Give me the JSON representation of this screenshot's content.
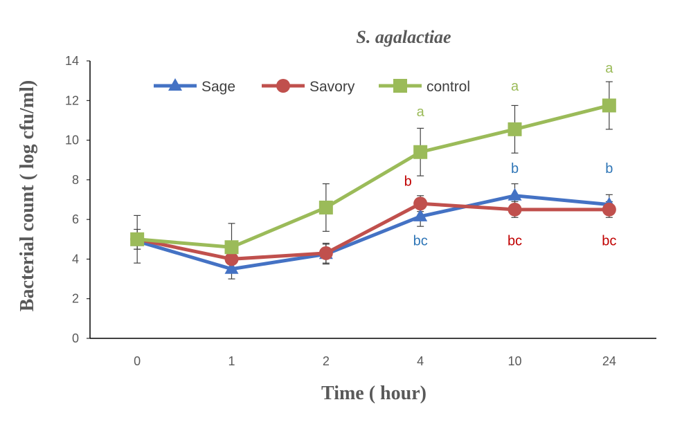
{
  "chart_data": {
    "type": "line",
    "title": "S. agalactiae",
    "xlabel": "Time ( hour)",
    "ylabel": "Bacterial count ( log cfu/ml)",
    "categories": [
      "0",
      "1",
      "2",
      "4",
      "10",
      "24"
    ],
    "ylim": [
      0,
      14
    ],
    "yticks": [
      0,
      2,
      4,
      6,
      8,
      10,
      12,
      14
    ],
    "grid": false,
    "legend_position": "top-left",
    "series": [
      {
        "name": "Sage",
        "color": "#4472C4",
        "marker": "triangle",
        "values": [
          4.9,
          3.5,
          4.25,
          6.15,
          7.2,
          6.75
        ],
        "errors": [
          0.4,
          0.5,
          0.5,
          0.5,
          0.6,
          0.5
        ]
      },
      {
        "name": "Savory",
        "color": "#C0504D",
        "marker": "circle",
        "values": [
          5.0,
          4.0,
          4.3,
          6.8,
          6.5,
          6.5
        ],
        "errors": [
          0.5,
          0.2,
          0.5,
          0.4,
          0.4,
          0.4
        ]
      },
      {
        "name": "control",
        "color": "#9BBB59",
        "marker": "square",
        "values": [
          5.0,
          4.6,
          6.6,
          9.4,
          10.55,
          11.75
        ],
        "errors": [
          1.2,
          1.2,
          1.2,
          1.2,
          1.2,
          1.2
        ]
      }
    ],
    "annotations": [
      {
        "text": "a",
        "category": "4",
        "y": 11.2,
        "color": "#9BBB59"
      },
      {
        "text": "a",
        "category": "10",
        "y": 12.5,
        "color": "#9BBB59"
      },
      {
        "text": "a",
        "category": "24",
        "y": 13.4,
        "color": "#9BBB59"
      },
      {
        "text": "b",
        "category": "4",
        "y": 7.7,
        "color": "#C00000",
        "offset": "left"
      },
      {
        "text": "b",
        "category": "10",
        "y": 8.35,
        "color": "#2E75B6"
      },
      {
        "text": "b",
        "category": "24",
        "y": 8.35,
        "color": "#2E75B6"
      },
      {
        "text": "bc",
        "category": "4",
        "y": 4.7,
        "color": "#2E75B6"
      },
      {
        "text": "bc",
        "category": "10",
        "y": 4.7,
        "color": "#C00000"
      },
      {
        "text": "bc",
        "category": "24",
        "y": 4.7,
        "color": "#C00000"
      }
    ]
  }
}
